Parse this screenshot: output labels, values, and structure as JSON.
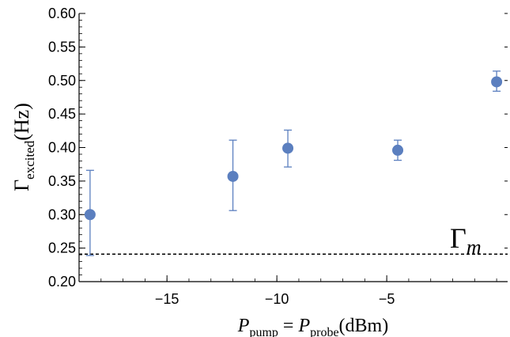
{
  "chart_data": {
    "type": "scatter",
    "xlabel": {
      "main": "P",
      "sub": "pump",
      "eq": " = ",
      "main2": "P",
      "sub2": "probe",
      "unit": "(dBm)"
    },
    "ylabel": {
      "main": "Γ",
      "sub": "excited",
      "unit": "(Hz)"
    },
    "xlim": [
      -19,
      0.5
    ],
    "ylim": [
      0.2,
      0.6
    ],
    "xticks": [
      -15,
      -10,
      -5
    ],
    "xtick_labels": [
      "−15",
      "−10",
      "−5"
    ],
    "yticks": [
      0.2,
      0.25,
      0.3,
      0.35,
      0.4,
      0.45,
      0.5,
      0.55,
      0.6
    ],
    "ytick_labels": [
      "0.20",
      "0.25",
      "0.30",
      "0.35",
      "0.40",
      "0.45",
      "0.50",
      "0.55",
      "0.60"
    ],
    "points": [
      {
        "x": -18.5,
        "y": 0.3,
        "err_low": 0.239,
        "err_high": 0.366
      },
      {
        "x": -12.0,
        "y": 0.357,
        "err_low": 0.306,
        "err_high": 0.411
      },
      {
        "x": -9.5,
        "y": 0.399,
        "err_low": 0.371,
        "err_high": 0.426
      },
      {
        "x": -4.5,
        "y": 0.396,
        "err_low": 0.381,
        "err_high": 0.411
      },
      {
        "x": 0.0,
        "y": 0.498,
        "err_low": 0.484,
        "err_high": 0.514
      }
    ],
    "reference_line": {
      "y": 0.241,
      "label_main": "Γ",
      "label_sub": "m",
      "style": "dashed"
    },
    "grid": false,
    "marker_color": "#5b7fbf",
    "errorbar_color": "#5b7fbf"
  }
}
